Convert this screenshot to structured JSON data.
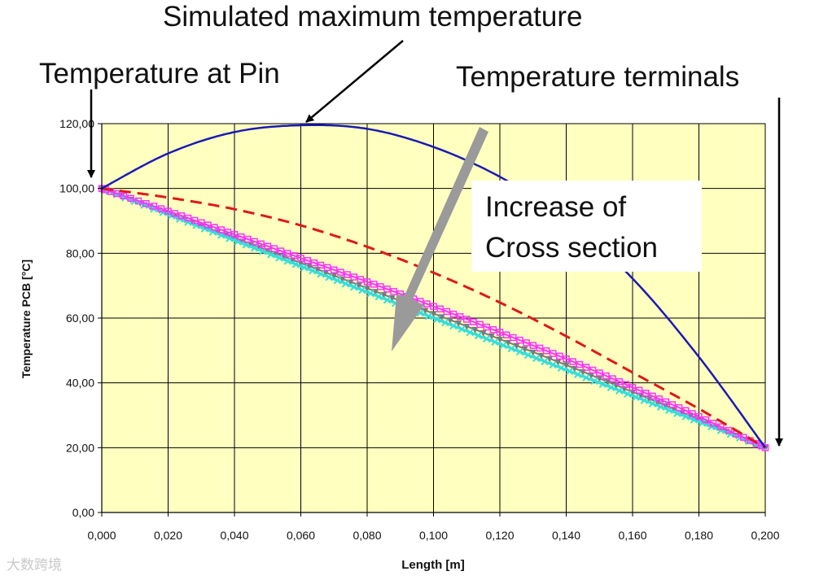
{
  "annotations": {
    "simulated_max": "Simulated maximum temperature",
    "temp_at_pin": "Temperature at Pin",
    "temp_terminals": "Temperature terminals",
    "callout_line1": "Increase of",
    "callout_line2": "Cross section"
  },
  "watermark": "大数跨境",
  "colors": {
    "plot_background": "#ffffc0",
    "grid": "#000000",
    "max_temp_line": "#1a1ab4",
    "dashed_line": "#e01818",
    "magenta_series": "#ff33ff",
    "cyan_series": "#33dddd",
    "gray_series": "#7a7a7a",
    "arrow": "#9a9a9a"
  },
  "chart_data": {
    "type": "line",
    "xlabel": "Length [m]",
    "ylabel": "Temperature PCB [°C]",
    "xlim": [
      0,
      0.2
    ],
    "ylim": [
      0,
      120
    ],
    "grid": true,
    "x_ticks": [
      "0,000",
      "0,020",
      "0,040",
      "0,060",
      "0,080",
      "0,100",
      "0,120",
      "0,140",
      "0,160",
      "0,180",
      "0,200"
    ],
    "y_ticks": [
      "0,00",
      "20,00",
      "40,00",
      "60,00",
      "80,00",
      "100,00",
      "120,00"
    ],
    "x": [
      0,
      0.02,
      0.04,
      0.06,
      0.08,
      0.1,
      0.12,
      0.14,
      0.16,
      0.18,
      0.2
    ],
    "series": [
      {
        "style": "solid-blue",
        "values": [
          100,
          110.8,
          117.4,
          119.5,
          118.4,
          112.8,
          103.6,
          90.6,
          72.2,
          48.0,
          20
        ]
      },
      {
        "style": "dashed-red",
        "values": [
          100,
          97.2,
          93.6,
          88.6,
          82.0,
          74.0,
          64.8,
          54.4,
          43.2,
          32.0,
          20
        ]
      },
      {
        "style": "magenta-square-markers",
        "values": [
          100,
          93.0,
          85.8,
          78.5,
          71.2,
          63.6,
          55.6,
          47.4,
          38.6,
          29.6,
          20
        ]
      },
      {
        "style": "gray-triangle-markers",
        "values": [
          100,
          92.4,
          84.7,
          77.0,
          69.2,
          61.4,
          53.5,
          45.5,
          37.2,
          28.7,
          20
        ]
      },
      {
        "style": "cyan-x-markers",
        "values": [
          100,
          92.0,
          84.0,
          76.0,
          68.0,
          60.0,
          52.0,
          44.0,
          36.0,
          28.0,
          20
        ]
      }
    ]
  }
}
